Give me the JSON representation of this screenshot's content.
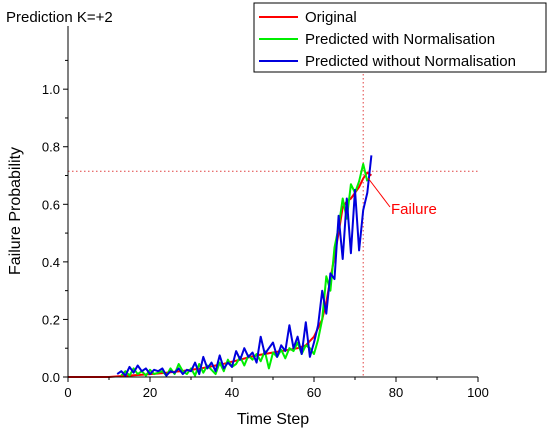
{
  "chart_data": {
    "type": "line",
    "title": "Prediction K=+2",
    "xlabel": "Time Step",
    "ylabel": "Failure Probability",
    "xlim": [
      0,
      100
    ],
    "ylim": [
      0,
      1.15
    ],
    "xticks": [
      0,
      20,
      40,
      60,
      80,
      100
    ],
    "yticks": [
      0.0,
      0.2,
      0.4,
      0.6,
      0.8,
      1.0
    ],
    "xtick_labels": [
      "0",
      "20",
      "40",
      "60",
      "80",
      "100"
    ],
    "ytick_labels": [
      "0.0",
      "0.2",
      "0.4",
      "0.6",
      "0.8",
      "1.0"
    ],
    "grid": false,
    "legend_position": "top-right",
    "annotation": {
      "text": "Failure",
      "x": 72,
      "y": 0.715,
      "color": "#ff0000"
    },
    "colors": {
      "original": "#ff0000",
      "with_norm": "#00ee00",
      "without_norm": "#0000dd",
      "reference": "#e04040"
    },
    "series": [
      {
        "name": "Original",
        "color": "#ff0000",
        "x": [
          0,
          2,
          4,
          6,
          8,
          10,
          12,
          14,
          16,
          18,
          20,
          22,
          24,
          26,
          28,
          30,
          32,
          34,
          36,
          38,
          40,
          42,
          44,
          46,
          48,
          50,
          52,
          54,
          56,
          58,
          60,
          62,
          63,
          64,
          65,
          66,
          67,
          68,
          69,
          70,
          71,
          72,
          73,
          74
        ],
        "y": [
          0,
          0,
          0,
          0,
          0,
          0,
          0.002,
          0.004,
          0.006,
          0.008,
          0.01,
          0.012,
          0.015,
          0.018,
          0.021,
          0.025,
          0.029,
          0.034,
          0.04,
          0.046,
          0.053,
          0.06,
          0.068,
          0.075,
          0.08,
          0.085,
          0.09,
          0.095,
          0.1,
          0.11,
          0.14,
          0.2,
          0.26,
          0.34,
          0.42,
          0.5,
          0.59,
          0.61,
          0.62,
          0.64,
          0.66,
          0.69,
          0.71,
          0.7
        ]
      },
      {
        "name": "Predicted with Normalisation",
        "color": "#00ee00",
        "x": [
          13,
          14,
          15,
          16,
          17,
          18,
          19,
          20,
          21,
          22,
          23,
          24,
          25,
          26,
          27,
          28,
          29,
          30,
          31,
          32,
          33,
          34,
          35,
          36,
          37,
          38,
          39,
          40,
          41,
          42,
          43,
          44,
          45,
          46,
          47,
          48,
          49,
          50,
          51,
          52,
          53,
          54,
          55,
          56,
          57,
          58,
          59,
          60,
          61,
          62,
          63,
          64,
          65,
          66,
          67,
          68,
          69,
          70,
          71,
          72,
          73
        ],
        "y": [
          0.005,
          0.02,
          0.005,
          0.03,
          0.01,
          0.02,
          0.005,
          0.025,
          0.01,
          0.015,
          0.02,
          0.005,
          0.03,
          0.01,
          0.045,
          0.02,
          0.01,
          0.03,
          0.005,
          0.045,
          0.015,
          0.04,
          0.025,
          0.01,
          0.05,
          0.02,
          0.06,
          0.035,
          0.045,
          0.07,
          0.04,
          0.075,
          0.06,
          0.08,
          0.055,
          0.09,
          0.03,
          0.085,
          0.07,
          0.095,
          0.065,
          0.1,
          0.09,
          0.12,
          0.08,
          0.11,
          0.1,
          0.08,
          0.13,
          0.2,
          0.35,
          0.3,
          0.45,
          0.52,
          0.62,
          0.55,
          0.67,
          0.64,
          0.68,
          0.74,
          0.68
        ]
      },
      {
        "name": "Predicted without Normalisation",
        "color": "#0000dd",
        "x": [
          12,
          13,
          14,
          15,
          16,
          17,
          18,
          19,
          20,
          21,
          22,
          23,
          24,
          25,
          26,
          27,
          28,
          29,
          30,
          31,
          32,
          33,
          34,
          35,
          36,
          37,
          38,
          39,
          40,
          41,
          42,
          43,
          44,
          45,
          46,
          47,
          48,
          49,
          50,
          51,
          52,
          53,
          54,
          55,
          56,
          57,
          58,
          59,
          60,
          61,
          62,
          63,
          64,
          65,
          66,
          67,
          68,
          69,
          70,
          71,
          72,
          73,
          74
        ],
        "y": [
          0.01,
          0.02,
          0.005,
          0.035,
          0.015,
          0.04,
          0.02,
          0.03,
          0.01,
          0.025,
          0.02,
          0.03,
          0.005,
          0.02,
          0.015,
          0.03,
          0.01,
          0.025,
          0.02,
          0.05,
          0.01,
          0.07,
          0.03,
          0.05,
          0.02,
          0.075,
          0.03,
          0.05,
          0.035,
          0.09,
          0.06,
          0.1,
          0.07,
          0.085,
          0.05,
          0.14,
          0.08,
          0.1,
          0.12,
          0.07,
          0.11,
          0.09,
          0.18,
          0.1,
          0.14,
          0.08,
          0.19,
          0.07,
          0.12,
          0.18,
          0.3,
          0.22,
          0.36,
          0.34,
          0.56,
          0.41,
          0.62,
          0.43,
          0.65,
          0.44,
          0.58,
          0.64,
          0.77
        ]
      }
    ],
    "reference_lines": {
      "x": 72,
      "y": 0.715
    }
  }
}
